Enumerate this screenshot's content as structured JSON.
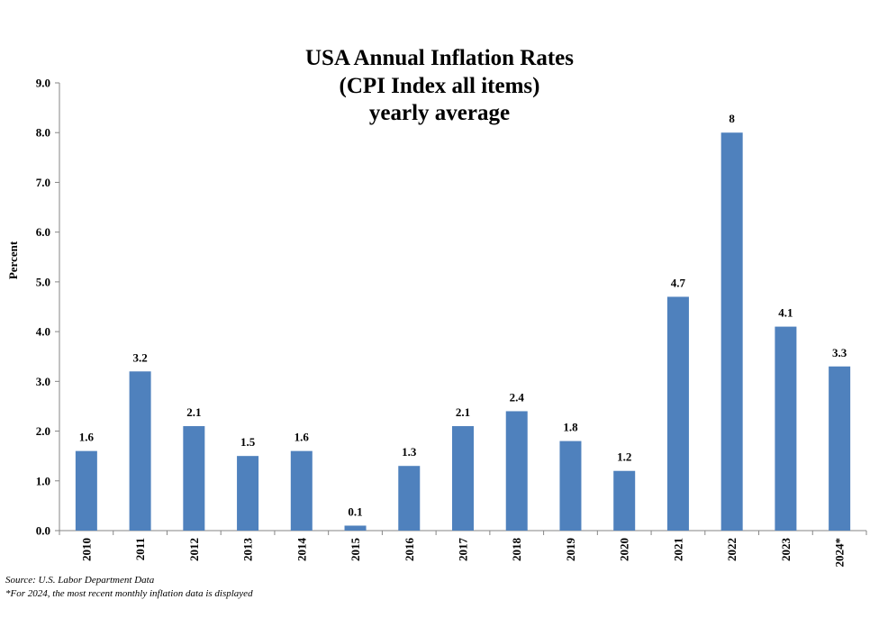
{
  "chart_data": {
    "type": "bar",
    "title_lines": [
      "USA Annual Inflation Rates",
      "(CPI Index all items)",
      "yearly average"
    ],
    "ylabel": "Percent",
    "xlabel": "",
    "ylim": [
      0,
      9
    ],
    "yticks": [
      "0.0",
      "1.0",
      "2.0",
      "3.0",
      "4.0",
      "5.0",
      "6.0",
      "7.0",
      "8.0",
      "9.0"
    ],
    "categories": [
      "2010",
      "2011",
      "2012",
      "2013",
      "2014",
      "2015",
      "2016",
      "2017",
      "2018",
      "2019",
      "2020",
      "2021",
      "2022",
      "2023",
      "2024*"
    ],
    "values": [
      1.6,
      3.2,
      2.1,
      1.5,
      1.6,
      0.1,
      1.3,
      2.1,
      2.4,
      1.8,
      1.2,
      4.7,
      8,
      4.1,
      3.3
    ],
    "data_labels": [
      "1.6",
      "3.2",
      "2.1",
      "1.5",
      "1.6",
      "0.1",
      "1.3",
      "2.1",
      "2.4",
      "1.8",
      "1.2",
      "4.7",
      "8",
      "4.1",
      "3.3"
    ],
    "bar_color": "#4f81bd",
    "grid": false,
    "legend": "none"
  },
  "footnotes": {
    "source": "Source: U.S. Labor Department Data",
    "note": "*For 2024, the most recent monthly inflation data is displayed"
  }
}
